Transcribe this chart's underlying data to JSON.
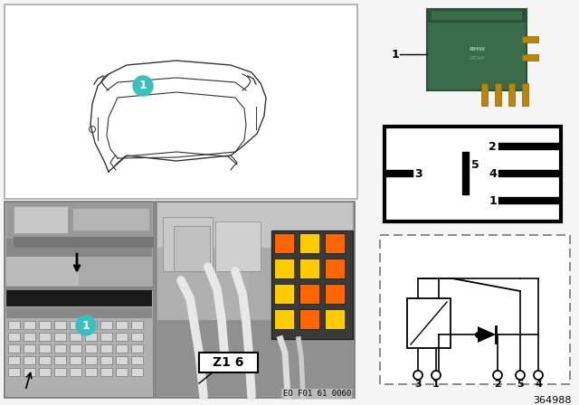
{
  "bg_color": "#f5f5f5",
  "fig_width": 6.4,
  "fig_height": 4.48,
  "part_number": "364988",
  "eo_code": "EO F01 61 0060",
  "z1_label": "Z1 6",
  "cyan_color": "#3BBFBF",
  "border_color": "#999999",
  "photo_bg": "#888888",
  "photo_light": "#cccccc",
  "photo_dark": "#555555",
  "relay_green": "#3a6b4a",
  "relay_dark_green": "#2a5038",
  "pin_gold": "#b8860b"
}
